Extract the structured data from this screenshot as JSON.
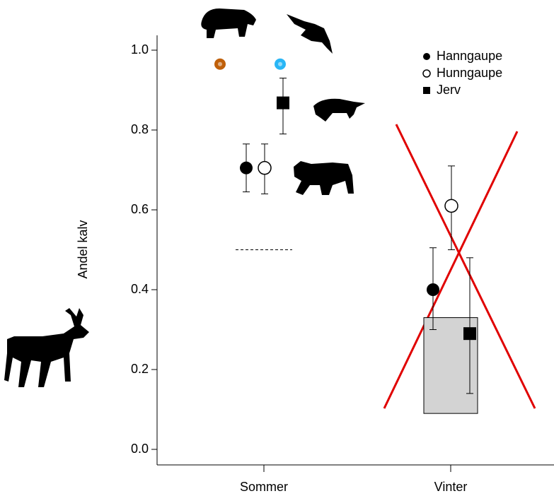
{
  "chart_data": {
    "type": "errorpoint",
    "y_label": "Andel kalv",
    "categories": [
      "Sommer",
      "Vinter"
    ],
    "ylim": [
      0,
      1
    ],
    "yticks": [
      {
        "value": 0,
        "label": "0.0"
      },
      {
        "value": 0.2,
        "label": "0.2"
      },
      {
        "value": 0.4,
        "label": "0.4"
      },
      {
        "value": 0.6,
        "label": "0.6"
      },
      {
        "value": 0.8,
        "label": "0.8"
      },
      {
        "value": 1,
        "label": "1.0"
      }
    ],
    "series": [
      {
        "name": "Hanngaupe",
        "marker": "circle",
        "color": "#000000",
        "values": [
          0.705,
          0.4
        ],
        "lower": [
          0.645,
          0.3
        ],
        "upper": [
          0.765,
          0.505
        ]
      },
      {
        "name": "Hunngaupe",
        "marker": "open-circle",
        "color": "#000000",
        "values": [
          0.705,
          0.61
        ],
        "lower": [
          0.64,
          0.5
        ],
        "upper": [
          0.765,
          0.71
        ]
      },
      {
        "name": "Jerv",
        "marker": "square",
        "color": "#000000",
        "values": [
          0.868,
          0.29
        ],
        "lower": [
          0.79,
          0.14
        ],
        "upper": [
          0.93,
          0.48
        ]
      }
    ],
    "range_box": {
      "color": "#d3d3d3",
      "values": [
        0.09,
        0.33
      ]
    },
    "reference_line": 0.5,
    "dots": [
      {
        "color": "#c0600a",
        "value": 0.965
      },
      {
        "color": "#29b6f6",
        "value": 0.965
      }
    ]
  }
}
